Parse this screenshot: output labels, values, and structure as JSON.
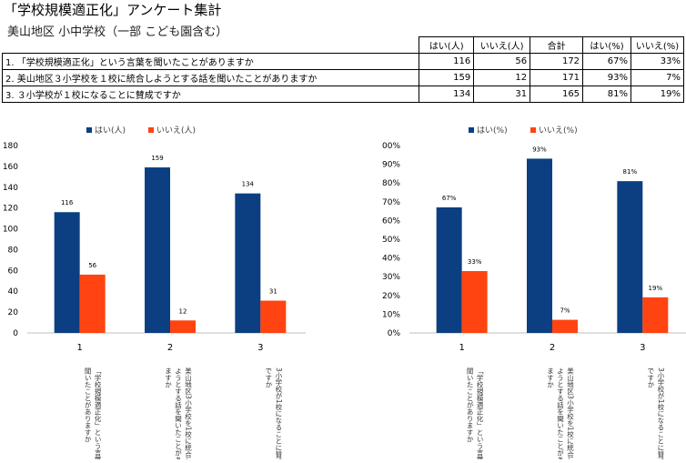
{
  "title": "「学校規模適正化」アンケート集計",
  "subtitle": "美山地区 小中学校（一部 こども園含む）",
  "table": {
    "headers": [
      "はい(人)",
      "いいえ(人)",
      "合計",
      "はい(%)",
      "いいえ(%)"
    ],
    "rows": [
      {
        "q": "1. 「学校規模適正化」という言葉を聞いたことがありますか",
        "yes": "116",
        "no": "56",
        "total": "172",
        "yes_pct": "67%",
        "no_pct": "33%"
      },
      {
        "q": "2. 美山地区３小学校を１校に統合しようとする話を聞いたことがありますか",
        "yes": "159",
        "no": "12",
        "total": "171",
        "yes_pct": "93%",
        "no_pct": "7%"
      },
      {
        "q": "3. ３小学校が１校になることに賛成ですか",
        "yes": "134",
        "no": "31",
        "total": "165",
        "yes_pct": "81%",
        "no_pct": "19%"
      }
    ]
  },
  "colors": {
    "yes": "#0b3f82",
    "no": "#ff4411"
  },
  "chart_data": [
    {
      "type": "bar",
      "categories": [
        "1",
        "2",
        "3"
      ],
      "category_notes": [
        "「学校規模適正化」という言葉を聞いたことがありますか",
        "美山地区３小学校を１校に統合しようとする話を聞いたことがありますか",
        "３小学校が１校になることに賛成ですか"
      ],
      "series": [
        {
          "name": "はい(人)",
          "values": [
            116,
            159,
            134
          ],
          "labels": [
            "116",
            "159",
            "134"
          ]
        },
        {
          "name": "いいえ(人)",
          "values": [
            56,
            12,
            31
          ],
          "labels": [
            "56",
            "12",
            "31"
          ]
        }
      ],
      "ylim": [
        0,
        180
      ],
      "yticks": [
        "0",
        "20",
        "40",
        "60",
        "80",
        "100",
        "120",
        "140",
        "160",
        "180"
      ],
      "grid": false,
      "legend": "top"
    },
    {
      "type": "bar",
      "categories": [
        "1",
        "2",
        "3"
      ],
      "category_notes": [
        "「学校規模適正化」という言葉を聞いたことがありますか",
        "美山地区３小学校を１校に統合しようとする話を聞いたことがありますか",
        "３小学校が１校になることに賛成ですか"
      ],
      "series": [
        {
          "name": "はい(%)",
          "values": [
            67,
            93,
            81
          ],
          "labels": [
            "67%",
            "93%",
            "81%"
          ]
        },
        {
          "name": "いいえ(%)",
          "values": [
            33,
            7,
            19
          ],
          "labels": [
            "33%",
            "7%",
            "19%"
          ]
        }
      ],
      "ylim": [
        0,
        100
      ],
      "yticks": [
        "0%",
        "10%",
        "20%",
        "30%",
        "40%",
        "50%",
        "60%",
        "70%",
        "80%",
        "90%",
        "100%"
      ],
      "grid": false,
      "legend": "top"
    }
  ]
}
